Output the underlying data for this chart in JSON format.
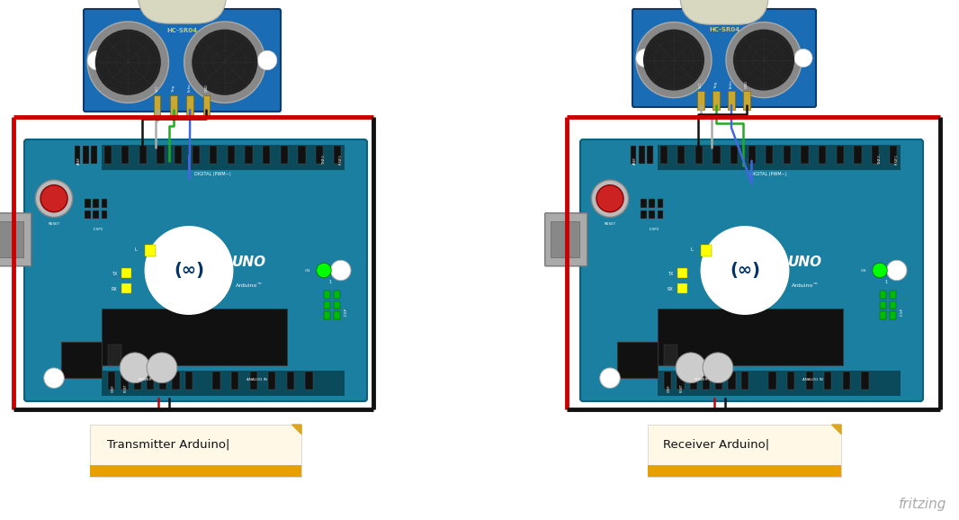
{
  "background_color": "#ffffff",
  "fig_width": 10.66,
  "fig_height": 5.78,
  "dpi": 100,
  "fritzing_text": "fritzing",
  "fritzing_color": "#aaaaaa",
  "label1_text": "Transmitter Arduino|",
  "label2_text": "Receiver Arduino|",
  "note_bg": "#fff8e7",
  "note_border": "#daa520",
  "note_bottom": "#e8a000",
  "arduino_board_color": "#1a7fa0",
  "arduino_board_dark": "#0d5f7a",
  "red_border_color": "#cc0000",
  "black_border_color": "#111111",
  "sensor_board_color": "#1a6db5",
  "sensor_circle_dark": "#222222",
  "sensor_circle_mid": "#555555",
  "sensor_label_color": "#c8c890",
  "wire_red": "#cc0000",
  "wire_black": "#111111",
  "wire_green": "#22aa22",
  "wire_blue": "#4466dd",
  "wire_gray": "#aaaaaa",
  "reset_button_color": "#cc2222",
  "usb_color": "#999999",
  "chip_color": "#111111",
  "pin_color": "#ccaa44",
  "logo_circle_color": "#ffffff",
  "uno_text_color": "#ffffff"
}
